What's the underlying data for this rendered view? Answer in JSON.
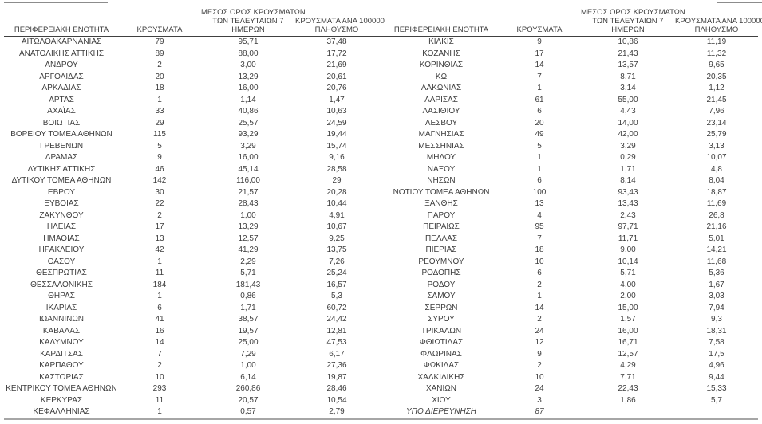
{
  "columns": {
    "region": "ΠΕΡΙΦΕΡΕΙΑΚΗ ΕΝΟΤΗΤΑ",
    "cases": "ΚΡΟΥΣΜΑΤΑ",
    "avg7_lines": [
      "ΜΕΣΟΣ ΟΡΟΣ ΚΡΟΥΣΜΑΤΩΝ",
      "ΤΩΝ ΤΕΛΕΥΤΑΙΩΝ 7",
      "ΗΜΕΡΩΝ"
    ],
    "per100k_lines": [
      "ΚΡΟΥΣΜΑΤΑ ΑΝΑ 100000",
      "ΠΛΗΘΥΣΜΟ"
    ]
  },
  "colors": {
    "text": "#3d3d3d",
    "header_rule": "#404040",
    "bottom_rule": "#a6a6a6",
    "top_rule_fragment": "#8c8c8c"
  },
  "left_table": {
    "rows": [
      {
        "region": "ΑΙΤΩΛΟΑΚΑΡΝΑΝΙΑΣ",
        "cases": "79",
        "avg7": "95,71",
        "per100k": "37,48"
      },
      {
        "region": "ΑΝΑΤΟΛΙΚΗΣ ΑΤΤΙΚΗΣ",
        "cases": "89",
        "avg7": "88,00",
        "per100k": "17,72"
      },
      {
        "region": "ΑΝΔΡΟΥ",
        "cases": "2",
        "avg7": "3,00",
        "per100k": "21,69"
      },
      {
        "region": "ΑΡΓΟΛΙΔΑΣ",
        "cases": "20",
        "avg7": "13,29",
        "per100k": "20,61"
      },
      {
        "region": "ΑΡΚΑΔΙΑΣ",
        "cases": "18",
        "avg7": "16,00",
        "per100k": "20,76"
      },
      {
        "region": "ΑΡΤΑΣ",
        "cases": "1",
        "avg7": "1,14",
        "per100k": "1,47"
      },
      {
        "region": "ΑΧΑΪΑΣ",
        "cases": "33",
        "avg7": "40,86",
        "per100k": "10,63"
      },
      {
        "region": "ΒΟΙΩΤΙΑΣ",
        "cases": "29",
        "avg7": "25,57",
        "per100k": "24,59"
      },
      {
        "region": "ΒΟΡΕΙΟΥ ΤΟΜΕΑ ΑΘΗΝΩΝ",
        "cases": "115",
        "avg7": "93,29",
        "per100k": "19,44"
      },
      {
        "region": "ΓΡΕΒΕΝΩΝ",
        "cases": "5",
        "avg7": "3,29",
        "per100k": "15,74"
      },
      {
        "region": "ΔΡΑΜΑΣ",
        "cases": "9",
        "avg7": "16,00",
        "per100k": "9,16"
      },
      {
        "region": "ΔΥΤΙΚΗΣ ΑΤΤΙΚΗΣ",
        "cases": "46",
        "avg7": "45,14",
        "per100k": "28,58"
      },
      {
        "region": "ΔΥΤΙΚΟΥ ΤΟΜΕΑ ΑΘΗΝΩΝ",
        "cases": "142",
        "avg7": "116,00",
        "per100k": "29"
      },
      {
        "region": "ΕΒΡΟΥ",
        "cases": "30",
        "avg7": "21,57",
        "per100k": "20,28"
      },
      {
        "region": "ΕΥΒΟΙΑΣ",
        "cases": "22",
        "avg7": "28,43",
        "per100k": "10,44"
      },
      {
        "region": "ΖΑΚΥΝΘΟΥ",
        "cases": "2",
        "avg7": "1,00",
        "per100k": "4,91"
      },
      {
        "region": "ΗΛΕΙΑΣ",
        "cases": "17",
        "avg7": "13,29",
        "per100k": "10,67"
      },
      {
        "region": "ΗΜΑΘΙΑΣ",
        "cases": "13",
        "avg7": "12,57",
        "per100k": "9,25"
      },
      {
        "region": "ΗΡΑΚΛΕΙΟΥ",
        "cases": "42",
        "avg7": "41,29",
        "per100k": "13,75"
      },
      {
        "region": "ΘΑΣΟΥ",
        "cases": "1",
        "avg7": "2,29",
        "per100k": "7,26"
      },
      {
        "region": "ΘΕΣΠΡΩΤΙΑΣ",
        "cases": "11",
        "avg7": "5,71",
        "per100k": "25,24"
      },
      {
        "region": "ΘΕΣΣΑΛΟΝΙΚΗΣ",
        "cases": "184",
        "avg7": "181,43",
        "per100k": "16,57"
      },
      {
        "region": "ΘΗΡΑΣ",
        "cases": "1",
        "avg7": "0,86",
        "per100k": "5,3"
      },
      {
        "region": "ΙΚΑΡΙΑΣ",
        "cases": "6",
        "avg7": "1,71",
        "per100k": "60,72"
      },
      {
        "region": "ΙΩΑΝΝΙΝΩΝ",
        "cases": "41",
        "avg7": "38,57",
        "per100k": "24,42"
      },
      {
        "region": "ΚΑΒΑΛΑΣ",
        "cases": "16",
        "avg7": "19,57",
        "per100k": "12,81"
      },
      {
        "region": "ΚΑΛΥΜΝΟΥ",
        "cases": "14",
        "avg7": "25,00",
        "per100k": "47,53"
      },
      {
        "region": "ΚΑΡΔΙΤΣΑΣ",
        "cases": "7",
        "avg7": "7,29",
        "per100k": "6,17"
      },
      {
        "region": "ΚΑΡΠΑΘΟΥ",
        "cases": "2",
        "avg7": "1,00",
        "per100k": "27,36"
      },
      {
        "region": "ΚΑΣΤΟΡΙΑΣ",
        "cases": "10",
        "avg7": "6,14",
        "per100k": "19,87"
      },
      {
        "region": "ΚΕΝΤΡΙΚΟΥ ΤΟΜΕΑ ΑΘΗΝΩΝ",
        "cases": "293",
        "avg7": "260,86",
        "per100k": "28,46"
      },
      {
        "region": "ΚΕΡΚΥΡΑΣ",
        "cases": "11",
        "avg7": "20,57",
        "per100k": "10,54"
      },
      {
        "region": "ΚΕΦΑΛΛΗΝΙΑΣ",
        "cases": "1",
        "avg7": "0,57",
        "per100k": "2,79"
      }
    ]
  },
  "right_table": {
    "rows": [
      {
        "region": "ΚΙΛΚΙΣ",
        "cases": "9",
        "avg7": "10,86",
        "per100k": "11,19"
      },
      {
        "region": "ΚΟΖΑΝΗΣ",
        "cases": "17",
        "avg7": "21,43",
        "per100k": "11,32"
      },
      {
        "region": "ΚΟΡΙΝΘΙΑΣ",
        "cases": "14",
        "avg7": "13,57",
        "per100k": "9,65"
      },
      {
        "region": "ΚΩ",
        "cases": "7",
        "avg7": "8,71",
        "per100k": "20,35"
      },
      {
        "region": "ΛΑΚΩΝΙΑΣ",
        "cases": "1",
        "avg7": "3,14",
        "per100k": "1,12"
      },
      {
        "region": "ΛΑΡΙΣΑΣ",
        "cases": "61",
        "avg7": "55,00",
        "per100k": "21,45"
      },
      {
        "region": "ΛΑΣΙΘΙΟΥ",
        "cases": "6",
        "avg7": "4,43",
        "per100k": "7,96"
      },
      {
        "region": "ΛΕΣΒΟΥ",
        "cases": "20",
        "avg7": "14,00",
        "per100k": "23,14"
      },
      {
        "region": "ΜΑΓΝΗΣΙΑΣ",
        "cases": "49",
        "avg7": "42,00",
        "per100k": "25,79"
      },
      {
        "region": "ΜΕΣΣΗΝΙΑΣ",
        "cases": "5",
        "avg7": "3,29",
        "per100k": "3,13"
      },
      {
        "region": "ΜΗΛΟΥ",
        "cases": "1",
        "avg7": "0,29",
        "per100k": "10,07"
      },
      {
        "region": "ΝΑΞΟΥ",
        "cases": "1",
        "avg7": "1,71",
        "per100k": "4,8"
      },
      {
        "region": "ΝΗΣΩΝ",
        "cases": "6",
        "avg7": "8,14",
        "per100k": "8,04"
      },
      {
        "region": "ΝΟΤΙΟΥ ΤΟΜΕΑ ΑΘΗΝΩΝ",
        "cases": "100",
        "avg7": "93,43",
        "per100k": "18,87"
      },
      {
        "region": "ΞΑΝΘΗΣ",
        "cases": "13",
        "avg7": "13,43",
        "per100k": "11,69"
      },
      {
        "region": "ΠΑΡΟΥ",
        "cases": "4",
        "avg7": "2,43",
        "per100k": "26,8"
      },
      {
        "region": "ΠΕΙΡΑΙΩΣ",
        "cases": "95",
        "avg7": "97,71",
        "per100k": "21,16"
      },
      {
        "region": "ΠΕΛΛΑΣ",
        "cases": "7",
        "avg7": "11,71",
        "per100k": "5,01"
      },
      {
        "region": "ΠΙΕΡΙΑΣ",
        "cases": "18",
        "avg7": "9,00",
        "per100k": "14,21"
      },
      {
        "region": "ΡΕΘΥΜΝΟΥ",
        "cases": "10",
        "avg7": "10,14",
        "per100k": "11,68"
      },
      {
        "region": "ΡΟΔΟΠΗΣ",
        "cases": "6",
        "avg7": "5,71",
        "per100k": "5,36"
      },
      {
        "region": "ΡΟΔΟΥ",
        "cases": "2",
        "avg7": "4,00",
        "per100k": "1,67"
      },
      {
        "region": "ΣΑΜΟΥ",
        "cases": "1",
        "avg7": "2,00",
        "per100k": "3,03"
      },
      {
        "region": "ΣΕΡΡΩΝ",
        "cases": "14",
        "avg7": "15,00",
        "per100k": "7,94"
      },
      {
        "region": "ΣΥΡΟΥ",
        "cases": "2",
        "avg7": "1,57",
        "per100k": "9,3"
      },
      {
        "region": "ΤΡΙΚΑΛΩΝ",
        "cases": "24",
        "avg7": "16,00",
        "per100k": "18,31"
      },
      {
        "region": "ΦΘΙΩΤΙΔΑΣ",
        "cases": "12",
        "avg7": "16,71",
        "per100k": "7,58"
      },
      {
        "region": "ΦΛΩΡΙΝΑΣ",
        "cases": "9",
        "avg7": "12,57",
        "per100k": "17,5"
      },
      {
        "region": "ΦΩΚΙΔΑΣ",
        "cases": "2",
        "avg7": "4,29",
        "per100k": "4,96"
      },
      {
        "region": "ΧΑΛΚΙΔΙΚΗΣ",
        "cases": "10",
        "avg7": "7,71",
        "per100k": "9,44"
      },
      {
        "region": "ΧΑΝΙΩΝ",
        "cases": "24",
        "avg7": "22,43",
        "per100k": "15,33"
      },
      {
        "region": "ΧΙΟΥ",
        "cases": "3",
        "avg7": "1,86",
        "per100k": "5,7"
      },
      {
        "region": "ΥΠΟ ΔΙΕΡΕΥΝΗΣΗ",
        "cases": "87",
        "avg7": "",
        "per100k": "",
        "italic": true
      }
    ]
  }
}
